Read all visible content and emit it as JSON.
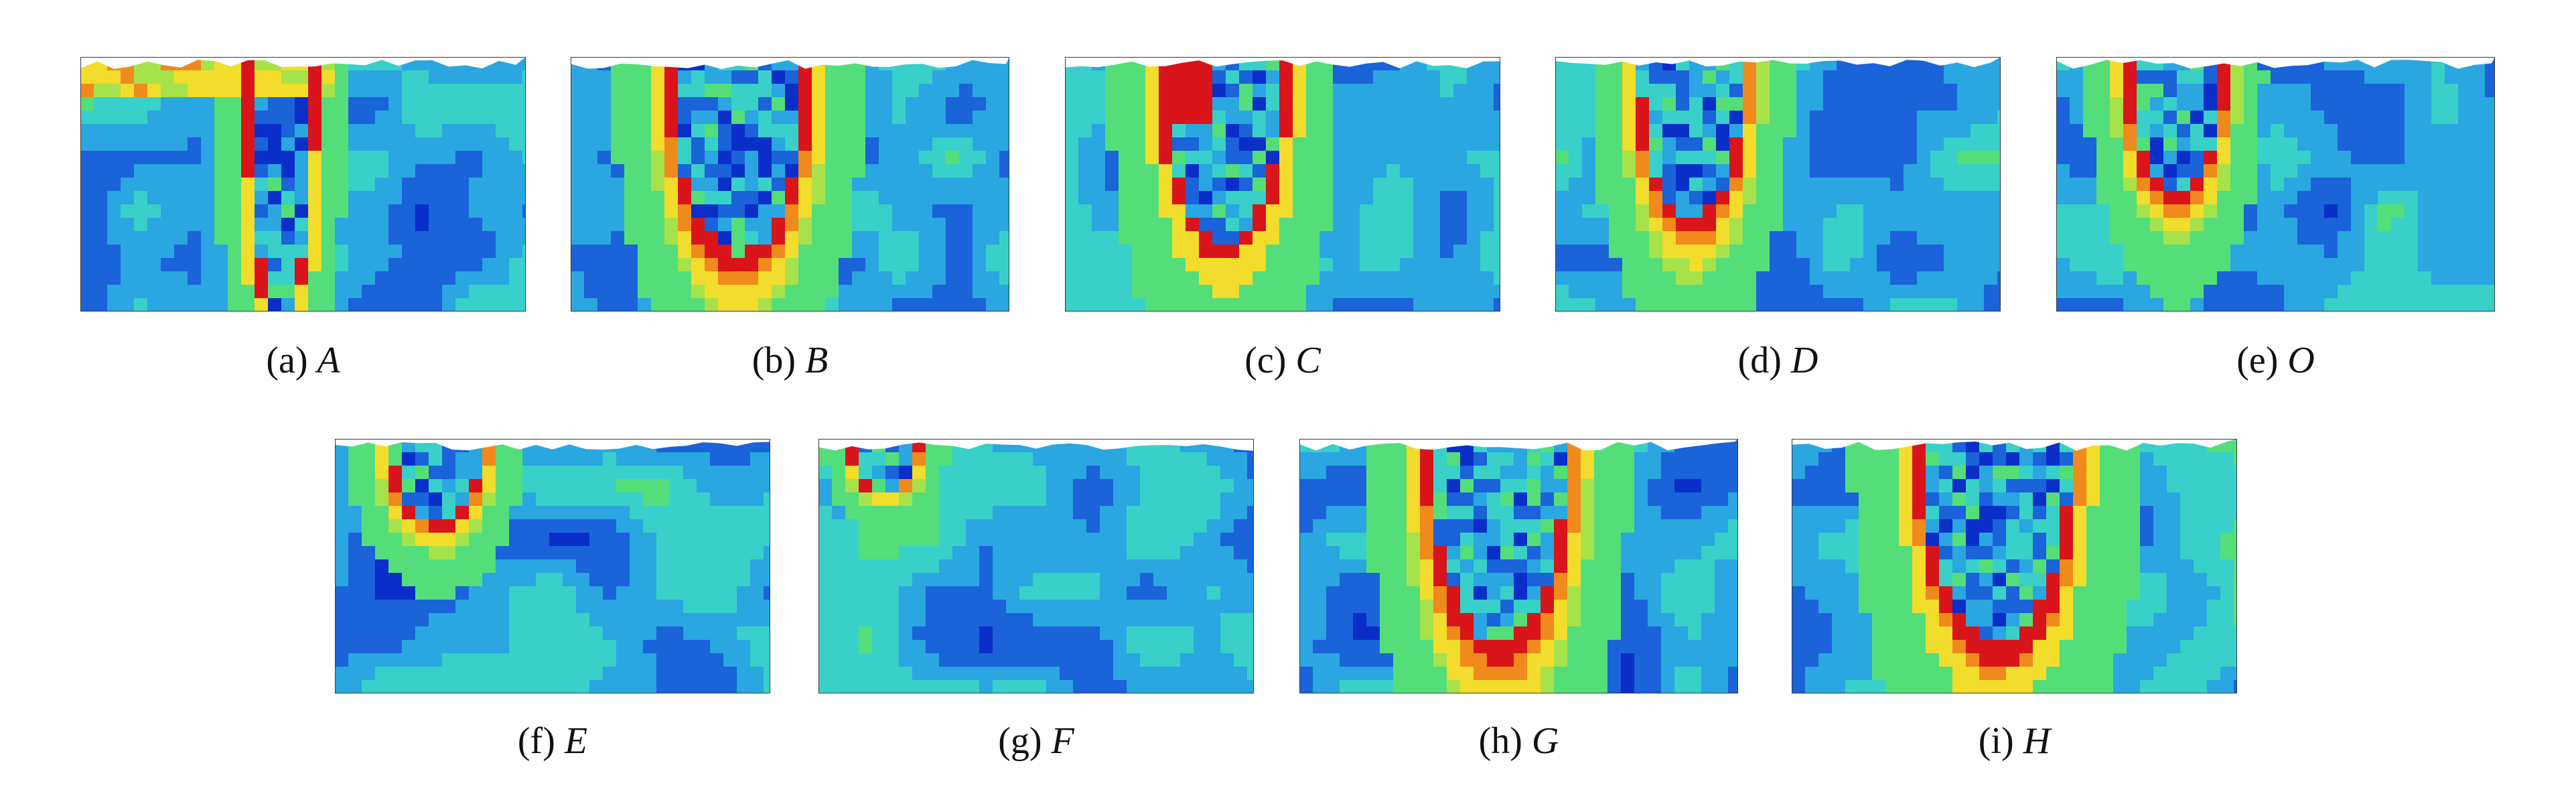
{
  "figure": {
    "panels": [
      {
        "id": "a",
        "label": "(a)",
        "symbol": "A"
      },
      {
        "id": "b",
        "label": "(b)",
        "symbol": "B"
      },
      {
        "id": "c",
        "label": "(c)",
        "symbol": "C"
      },
      {
        "id": "d",
        "label": "(d)",
        "symbol": "D"
      },
      {
        "id": "e",
        "label": "(e)",
        "symbol": "O"
      },
      {
        "id": "f",
        "label": "(f)",
        "symbol": "E"
      },
      {
        "id": "g",
        "label": "(g)",
        "symbol": "F"
      },
      {
        "id": "h",
        "label": "(h)",
        "symbol": "G"
      },
      {
        "id": "i",
        "label": "(i)",
        "symbol": "H"
      }
    ],
    "colormap": [
      "#0a2fc8",
      "#1a63d9",
      "#2aa6e0",
      "#38d0c8",
      "#53de7a",
      "#a6e24a",
      "#f2dc2c",
      "#f08a1c",
      "#d9141a"
    ]
  }
}
